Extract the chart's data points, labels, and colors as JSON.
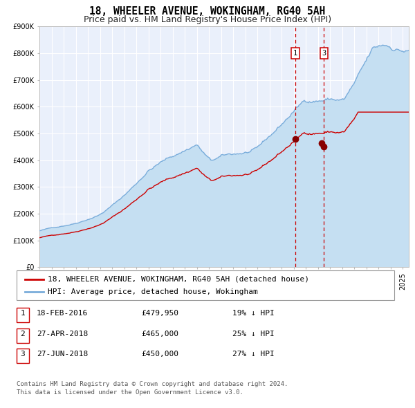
{
  "title": "18, WHEELER AVENUE, WOKINGHAM, RG40 5AH",
  "subtitle": "Price paid vs. HM Land Registry's House Price Index (HPI)",
  "ylim": [
    0,
    900000
  ],
  "yticks": [
    0,
    100000,
    200000,
    300000,
    400000,
    500000,
    600000,
    700000,
    800000,
    900000
  ],
  "ytick_labels": [
    "£0",
    "£100K",
    "£200K",
    "£300K",
    "£400K",
    "£500K",
    "£600K",
    "£700K",
    "£800K",
    "£900K"
  ],
  "xlim_start": 1995.0,
  "xlim_end": 2025.5,
  "hpi_color": "#7aaddb",
  "hpi_fill_color": "#c5dff2",
  "price_color": "#cc0000",
  "marker_color": "#880000",
  "vline_color": "#cc0000",
  "plot_bg_color": "#eaf0fb",
  "grid_color": "#ffffff",
  "legend_label_price": "18, WHEELER AVENUE, WOKINGHAM, RG40 5AH (detached house)",
  "legend_label_hpi": "HPI: Average price, detached house, Wokingham",
  "sale1_date_num": 2016.12,
  "sale1_price": 479950,
  "sale2_date_num": 2018.32,
  "sale2_price": 465000,
  "sale3_date_num": 2018.49,
  "sale3_price": 450000,
  "table_rows": [
    [
      "1",
      "18-FEB-2016",
      "£479,950",
      "19% ↓ HPI"
    ],
    [
      "2",
      "27-APR-2018",
      "£465,000",
      "25% ↓ HPI"
    ],
    [
      "3",
      "27-JUN-2018",
      "£450,000",
      "27% ↓ HPI"
    ]
  ],
  "footer_line1": "Contains HM Land Registry data © Crown copyright and database right 2024.",
  "footer_line2": "This data is licensed under the Open Government Licence v3.0.",
  "title_fontsize": 10.5,
  "subtitle_fontsize": 9,
  "tick_fontsize": 7,
  "legend_fontsize": 8,
  "table_fontsize": 8,
  "footer_fontsize": 6.5
}
